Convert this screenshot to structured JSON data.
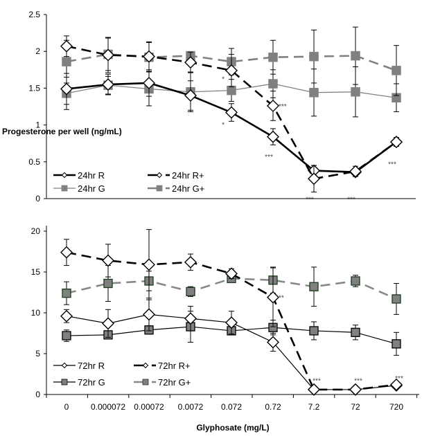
{
  "chart_data": [
    {
      "type": "line",
      "panel": "top",
      "title": "",
      "ylabel": "Progesterone per well (ng/mL)",
      "xlabel": "",
      "ylim": [
        0,
        2.5
      ],
      "yticks": [
        "0",
        "0.5",
        "1",
        "1.5",
        "2",
        "2.5"
      ],
      "ytick_values": [
        0,
        0.5,
        1,
        1.5,
        2,
        2.5
      ],
      "categories": [
        "0",
        "0.000072",
        "0.00072",
        "0.0072",
        "0.072",
        "0.72",
        "7.2",
        "72",
        "720"
      ],
      "show_x_tick_labels": false,
      "grid": false,
      "legend": "bottom-left",
      "series": [
        {
          "name": "24hr R",
          "marker": "diamond",
          "line": "solid",
          "color": "#000000",
          "width": "thick",
          "values": [
            1.49,
            1.55,
            1.57,
            1.4,
            1.17,
            0.84,
            0.38,
            0.36,
            0.77
          ],
          "err": [
            0.21,
            0.14,
            0.18,
            0.2,
            0.12,
            0.11,
            0.07,
            0.05,
            0.05
          ]
        },
        {
          "name": "24hr R+",
          "marker": "diamond",
          "line": "dashed",
          "color": "#000000",
          "width": "thick",
          "values": [
            2.07,
            1.95,
            1.93,
            1.85,
            1.74,
            1.26,
            0.27,
            0.37,
            0.77
          ],
          "err": [
            0.14,
            0.24,
            0.2,
            0.14,
            0.22,
            0.2,
            0.18,
            0.07,
            0.06
          ]
        },
        {
          "name": "24hr G",
          "marker": "square",
          "line": "solid",
          "color": "#808080",
          "width": "thin",
          "values": [
            1.43,
            1.54,
            1.49,
            1.45,
            1.47,
            1.56,
            1.44,
            1.45,
            1.37
          ],
          "err": [
            0.22,
            0.12,
            0.23,
            0.27,
            0.15,
            0.19,
            0.32,
            0.34,
            0.19
          ]
        },
        {
          "name": "24hr G+",
          "marker": "square",
          "line": "dashed",
          "color": "#808080",
          "width": "thick",
          "values": [
            1.86,
            1.96,
            1.92,
            1.94,
            1.86,
            1.92,
            1.93,
            1.94,
            1.74
          ],
          "err": [
            0.29,
            0.22,
            0.2,
            0.05,
            0.18,
            0.23,
            0.36,
            0.39,
            0.34
          ]
        }
      ],
      "annotations": [
        {
          "text": "*",
          "category": "0.072",
          "y": 1.67,
          "side": "left"
        },
        {
          "text": "*",
          "category": "0.072",
          "y": 1.05,
          "side": "left"
        },
        {
          "text": "***",
          "category": "0.72",
          "y": 1.26,
          "side": "right"
        },
        {
          "text": "***",
          "category": "0.72",
          "y": 0.65,
          "side": "below"
        },
        {
          "text": "***",
          "category": "7.2",
          "y": 0.07,
          "side": "below"
        },
        {
          "text": "***",
          "category": "72",
          "y": 0.07,
          "side": "below"
        },
        {
          "text": "***",
          "category": "720",
          "y": 0.55,
          "side": "below"
        }
      ]
    },
    {
      "type": "line",
      "panel": "bottom",
      "title": "",
      "ylabel": "",
      "xlabel": "Glyphosate (mg/L)",
      "ylim": [
        0,
        20
      ],
      "yticks": [
        "0",
        "5",
        "10",
        "15",
        "20"
      ],
      "ytick_values": [
        0,
        5,
        10,
        15,
        20
      ],
      "categories": [
        "0",
        "0.000072",
        "0.00072",
        "0.0072",
        "0.072",
        "0.72",
        "7.2",
        "72",
        "720"
      ],
      "show_x_tick_labels": true,
      "grid": false,
      "legend": "bottom-left",
      "series": [
        {
          "name": "72hr R",
          "marker": "diamond",
          "line": "solid",
          "color": "#000000",
          "width": "thin",
          "values": [
            9.6,
            8.7,
            9.8,
            9.3,
            8.8,
            6.4,
            0.6,
            0.6,
            1.1
          ],
          "err": [
            0.8,
            1.7,
            2.0,
            1.5,
            1.4,
            1.1,
            0.2,
            0.2,
            0.2
          ]
        },
        {
          "name": "72hr R+",
          "marker": "diamond",
          "line": "dashed",
          "color": "#000000",
          "width": "thick",
          "values": [
            17.4,
            16.4,
            15.9,
            16.2,
            14.8,
            11.9,
            0.6,
            0.6,
            1.2
          ],
          "err": [
            1.6,
            2.0,
            4.3,
            1.0,
            0.6,
            3.6,
            0.2,
            0.2,
            0.2
          ]
        },
        {
          "name": "72hr G",
          "marker": "square",
          "line": "solid",
          "color": "#000000",
          "fill": "#808080",
          "width": "thin",
          "values": [
            7.2,
            7.3,
            7.9,
            8.3,
            7.8,
            8.2,
            7.8,
            7.6,
            6.2
          ],
          "err": [
            0.7,
            0.4,
            0.5,
            1.9,
            0.4,
            0.9,
            1.1,
            0.9,
            1.4
          ]
        },
        {
          "name": "72hr G+",
          "marker": "square",
          "line": "dashed",
          "color": "#888888",
          "fill": "#808080",
          "edge": "#1a3a1a",
          "width": "thick",
          "values": [
            12.4,
            13.6,
            13.9,
            12.6,
            14.2,
            14.0,
            13.2,
            13.9,
            11.7
          ],
          "err": [
            1.4,
            2.2,
            1.2,
            0.6,
            0.3,
            1.6,
            2.4,
            0.7,
            1.9
          ]
        }
      ],
      "annotations": [
        {
          "text": "**",
          "category": "0.72",
          "y": 11.9,
          "side": "right"
        },
        {
          "text": "***",
          "category": "7.2",
          "y": 1.4,
          "side": "above"
        },
        {
          "text": "***",
          "category": "72",
          "y": 1.4,
          "side": "above"
        },
        {
          "text": "***",
          "category": "720",
          "y": 1.7,
          "side": "above"
        }
      ]
    }
  ]
}
